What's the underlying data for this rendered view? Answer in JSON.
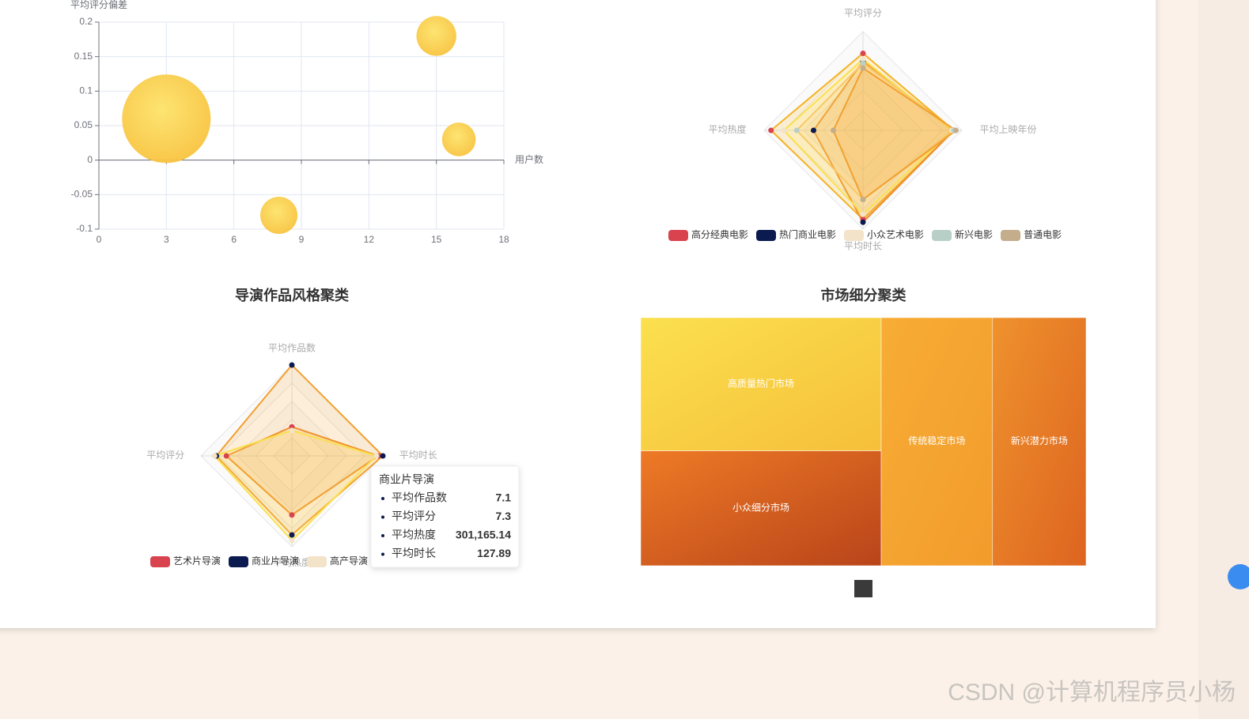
{
  "chart_data": [
    {
      "type": "scatter",
      "y_axis_label": "平均评分偏差",
      "x_axis_label": "用户数",
      "x": [
        3,
        15,
        16,
        8
      ],
      "values": [
        0.06,
        0.18,
        0.03,
        -0.08
      ],
      "sizes": [
        100,
        45,
        38,
        42
      ],
      "color": "#f8c440",
      "xlim": [
        0,
        18
      ],
      "xticks": [
        0,
        3,
        6,
        9,
        12,
        15,
        18
      ],
      "ylim": [
        -0.1,
        0.2
      ],
      "yticks": [
        -0.1,
        -0.05,
        0,
        0.05,
        0.1,
        0.15,
        0.2
      ],
      "grid": true
    },
    {
      "type": "radar",
      "indicators": [
        "平均评分",
        "平均热度",
        "平均时长",
        "平均上映年份"
      ],
      "rlim": [
        0,
        1
      ],
      "series": [
        {
          "name": "高分经典电影",
          "color": "#d9434e",
          "line_color": "#f5b324",
          "values": [
            0.78,
            0.93,
            0.9,
            0.92
          ]
        },
        {
          "name": "热门商业电影",
          "color": "#0b1a4f",
          "line_color": "#ee8f2b",
          "values": [
            0.7,
            0.5,
            0.93,
            0.92
          ]
        },
        {
          "name": "小众艺术电影",
          "color": "#f3e3c8",
          "line_color": "#fbe04e",
          "values": [
            0.72,
            0.8,
            0.85,
            0.9
          ]
        },
        {
          "name": "新兴电影",
          "color": "#b8cfc8",
          "line_color": "#f7c86a",
          "values": [
            0.68,
            0.67,
            0.7,
            0.92
          ]
        },
        {
          "name": "普通电影",
          "color": "#c3ad8b",
          "line_color": "#f2a030",
          "values": [
            0.63,
            0.3,
            0.7,
            0.94
          ]
        }
      ]
    },
    {
      "type": "radar",
      "title": "导演作品风格聚类",
      "indicators": [
        "平均作品数",
        "平均评分",
        "平均热度",
        "平均时长"
      ],
      "rlim": [
        0,
        1
      ],
      "series": [
        {
          "name": "艺术片导演",
          "color": "#d9434e",
          "line_color": "#ee8f2b",
          "values": [
            0.32,
            0.72,
            0.65,
            0.95
          ]
        },
        {
          "name": "商业片导演",
          "color": "#0b1a4f",
          "line_color": "#f2a030",
          "values": [
            1.0,
            0.83,
            0.87,
            1.0
          ]
        },
        {
          "name": "高产导演",
          "color": "#f3e3c8",
          "line_color": "#fbe04e",
          "values": [
            0.28,
            0.85,
            0.93,
            0.93
          ]
        }
      ],
      "tooltip": {
        "title": "商业片导演",
        "rows": [
          {
            "name": "平均作品数",
            "value": 7.1
          },
          {
            "name": "平均评分",
            "value": 7.3
          },
          {
            "name": "平均热度",
            "value": 301165.14,
            "label": "301,165.14"
          },
          {
            "name": "平均时长",
            "value": 127.89
          }
        ]
      }
    },
    {
      "type": "treemap",
      "title": "市场细分聚类",
      "categories": [
        "高质量热门市场",
        "小众细分市场",
        "传统稳定市场",
        "新兴潜力市场"
      ],
      "values": [
        29,
        25,
        25,
        21
      ],
      "colors": [
        [
          "#fbe04e",
          "#f6bf3a"
        ],
        [
          "#ee7a26",
          "#b9441a"
        ],
        [
          "#f7ad35",
          "#f29b2c"
        ],
        [
          "#ef922d",
          "#dd6420"
        ]
      ]
    }
  ],
  "watermark": "CSDN @计算机程序员小杨"
}
